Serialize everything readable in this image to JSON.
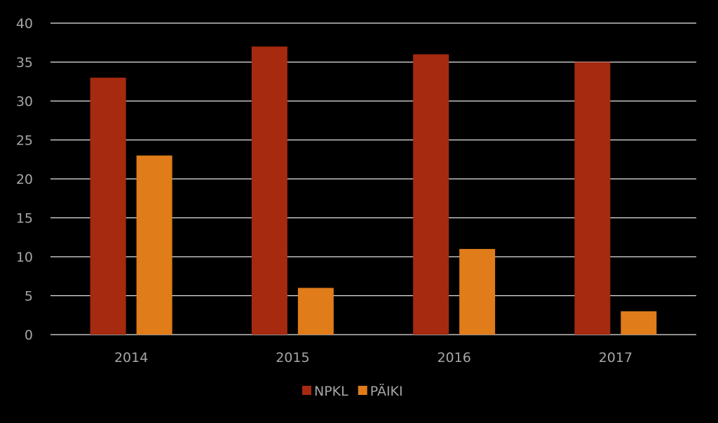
{
  "chart_data": {
    "type": "bar",
    "categories": [
      "2014",
      "2015",
      "2016",
      "2017"
    ],
    "series": [
      {
        "name": "NPKL",
        "values": [
          33,
          37,
          36,
          35
        ],
        "color": "#a52a0f"
      },
      {
        "name": "PÄIKI",
        "values": [
          23,
          6,
          11,
          3
        ],
        "color": "#e07c1a"
      }
    ],
    "ylim": [
      0,
      40
    ],
    "yticks": [
      0,
      5,
      10,
      15,
      20,
      25,
      30,
      35,
      40
    ],
    "grid": true,
    "legend": "bottom",
    "background": "#000000",
    "text_color": "#a6a6a6",
    "grid_color": "#e6e6e6"
  }
}
